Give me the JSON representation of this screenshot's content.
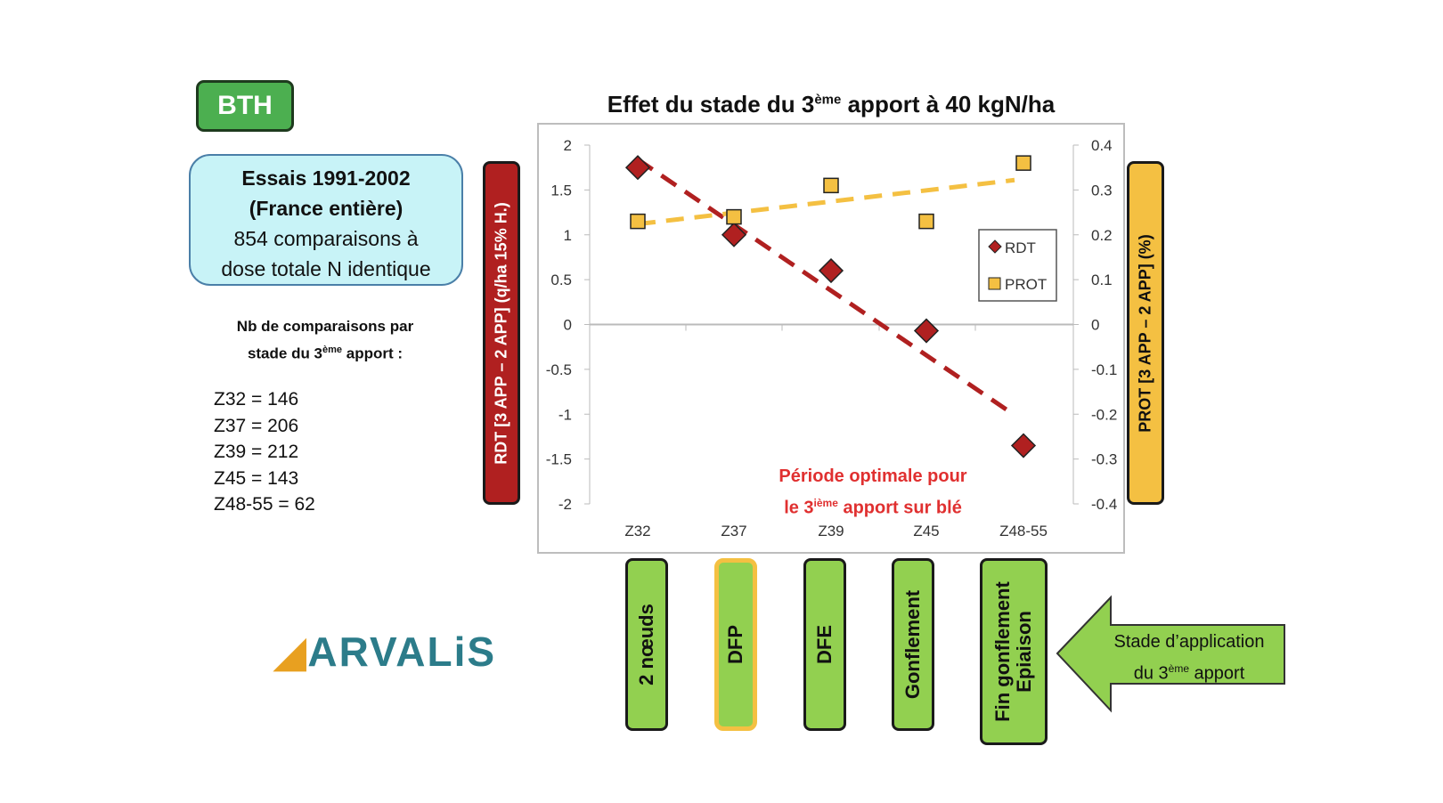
{
  "badge": "BTH",
  "info": {
    "line1": "Essais 1991-2002",
    "line2": "(France entière)",
    "line3": "854 comparaisons à",
    "line4": "dose totale N identique"
  },
  "nb": {
    "line1": "Nb de comparaisons  par",
    "line2a": "stade du 3",
    "line2sup": "ème",
    "line2b": " apport :"
  },
  "counts": [
    "Z32 =  146",
    "Z37 = 206",
    "Z39 = 212",
    "Z45 =  143",
    "Z48-55 = 62"
  ],
  "logo": "ARVALiS",
  "arrow": {
    "line1": "Stade d’application",
    "line2a": "du 3",
    "line2sup": "ème",
    "line2b": " apport"
  },
  "stages": [
    "2 nœuds",
    "DFP",
    "DFE",
    "Gonflement",
    "Fin gonflement\nEpiaison"
  ],
  "chart_data": {
    "type": "scatter",
    "title_a": "Effet du stade du 3",
    "title_sup": "ème",
    "title_b": " apport à 40 kgN/ha",
    "categories": [
      "Z32",
      "Z37",
      "Z39",
      "Z45",
      "Z48-55"
    ],
    "ylabel": "RDT [3 APP – 2 APP] (q/ha 15% H.)",
    "y2label": "PROT [3 APP – 2 APP] (%)",
    "ylim": [
      -2,
      2
    ],
    "y2lim": [
      -0.4,
      0.4
    ],
    "yticks": [
      "2",
      "1.5",
      "1",
      "0.5",
      "0",
      "-0.5",
      "-1",
      "-1.5",
      "-2"
    ],
    "y2ticks": [
      "0.4",
      "0.3",
      "0.2",
      "0.1",
      "0",
      "-0.1",
      "-0.2",
      "-0.3",
      "-0.4"
    ],
    "series": [
      {
        "name": "RDT",
        "axis": "left",
        "values": [
          1.75,
          1.0,
          0.6,
          -0.07,
          -1.35
        ],
        "color": "#b02020",
        "marker": "diamond",
        "trendline": "linear"
      },
      {
        "name": "PROT",
        "axis": "right",
        "values": [
          0.23,
          0.24,
          0.31,
          0.23,
          0.36
        ],
        "color": "#f4c042",
        "marker": "square",
        "trendline": "linear"
      }
    ],
    "legend": "right",
    "annotation": {
      "line1": "Période optimale pour",
      "line2a": "le 3",
      "line2sup": "ième",
      "line2b": " apport sur blé",
      "color": "#e03030"
    }
  }
}
